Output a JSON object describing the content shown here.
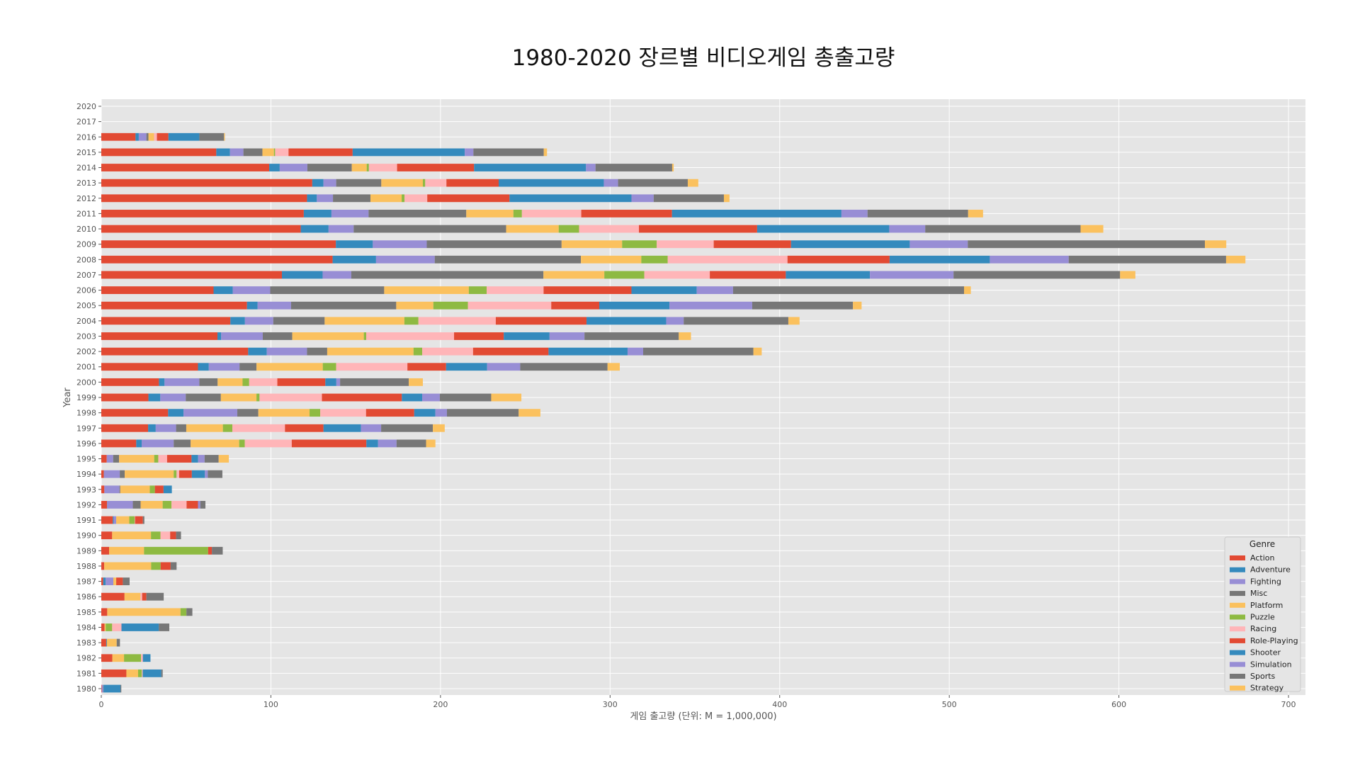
{
  "chart_data": {
    "type": "bar",
    "orientation": "horizontal",
    "stacked": true,
    "title": "1980-2020 장르별 비디오게임 총출고량",
    "xlabel": "게임 출고량 (단위: M = 1,000,000)",
    "ylabel": "Year",
    "xlim": [
      0,
      710
    ],
    "xticks": [
      0,
      100,
      200,
      300,
      400,
      500,
      600,
      700
    ],
    "grid": true,
    "legend": {
      "title": "Genre",
      "placement": "bottom-right"
    },
    "categories": [
      "1980",
      "1981",
      "1982",
      "1983",
      "1984",
      "1985",
      "1986",
      "1987",
      "1988",
      "1989",
      "1990",
      "1991",
      "1992",
      "1993",
      "1994",
      "1995",
      "1996",
      "1997",
      "1998",
      "1999",
      "2000",
      "2001",
      "2002",
      "2003",
      "2004",
      "2005",
      "2006",
      "2007",
      "2008",
      "2009",
      "2010",
      "2011",
      "2012",
      "2013",
      "2014",
      "2015",
      "2016",
      "2017",
      "2020"
    ],
    "colors": {
      "Action": "#E24A33",
      "Adventure": "#348ABD",
      "Fighting": "#988ED5",
      "Misc": "#777777",
      "Platform": "#FBC15E",
      "Puzzle": "#8EBA42",
      "Racing": "#FFB5B8",
      "Role-Playing": "#E24A33",
      "Shooter": "#348ABD",
      "Simulation": "#988ED5",
      "Sports": "#777777",
      "Strategy": "#FBC15E"
    },
    "series": [
      {
        "name": "Action",
        "values": [
          0.3,
          14.8,
          6.5,
          2.9,
          1.9,
          3.5,
          13.7,
          1.1,
          1.7,
          4.6,
          6.4,
          6.8,
          3.4,
          1.8,
          1.5,
          3.2,
          20.6,
          27.6,
          39.4,
          27.8,
          34.0,
          57.0,
          86.6,
          68.5,
          76.1,
          85.9,
          66.2,
          106.5,
          136.4,
          138.3,
          117.6,
          119.4,
          121.3,
          124.4,
          99.0,
          67.8,
          20.2,
          0,
          0
        ]
      },
      {
        "name": "Adventure",
        "values": [
          0,
          0,
          0,
          0.4,
          0,
          0,
          0,
          1.5,
          0,
          0,
          0,
          0.5,
          0.1,
          0,
          0.1,
          0,
          3.2,
          4.5,
          9.1,
          7.0,
          3.3,
          6.4,
          11.0,
          2.2,
          8.6,
          6.3,
          11.3,
          24.0,
          25.6,
          21.8,
          16.4,
          16.3,
          5.8,
          6.6,
          6.2,
          8.1,
          1.9,
          0,
          0
        ]
      },
      {
        "name": "Fighting",
        "values": [
          0.8,
          0,
          0,
          0,
          0,
          0,
          0,
          4.5,
          0,
          0,
          0,
          1.5,
          15.1,
          8.9,
          9.3,
          3.8,
          18.9,
          12.0,
          31.7,
          15.0,
          20.5,
          18.1,
          23.7,
          24.5,
          16.7,
          19.7,
          22.1,
          16.9,
          34.6,
          31.8,
          14.8,
          21.9,
          9.5,
          7.5,
          16.3,
          7.9,
          4.5,
          0,
          0
        ]
      },
      {
        "name": "Misc",
        "values": [
          0.2,
          0,
          0,
          0,
          0,
          0,
          0,
          0,
          0,
          0,
          0,
          0,
          4.6,
          0.5,
          2.9,
          3.5,
          10.0,
          6.0,
          12.4,
          20.7,
          10.8,
          10.0,
          11.9,
          17.4,
          30.3,
          62.0,
          67.2,
          113.3,
          86.2,
          79.5,
          89.9,
          57.6,
          22.1,
          26.6,
          26.2,
          11.2,
          1.2,
          0,
          0
        ]
      },
      {
        "name": "Platform",
        "values": [
          0,
          6.9,
          6.9,
          5.8,
          0.7,
          43.2,
          9.4,
          1.7,
          27.7,
          20.6,
          22.9,
          7.7,
          13.0,
          17.4,
          28.9,
          20.7,
          28.6,
          21.6,
          30.2,
          21.0,
          14.7,
          39.1,
          50.9,
          42.2,
          47.0,
          21.9,
          49.9,
          35.9,
          35.6,
          35.7,
          31.0,
          27.8,
          18.4,
          24.5,
          8.8,
          6.8,
          3.3,
          0,
          0
        ]
      },
      {
        "name": "Puzzle",
        "values": [
          0,
          2.2,
          10.0,
          0,
          3.8,
          3.5,
          0,
          0,
          5.6,
          37.8,
          5.6,
          3.2,
          5.2,
          3.0,
          1.7,
          2.4,
          3.3,
          5.6,
          6.3,
          1.8,
          3.9,
          7.9,
          5.1,
          1.4,
          8.3,
          20.4,
          10.5,
          23.6,
          15.6,
          20.4,
          12.0,
          5.0,
          1.7,
          1.4,
          1.3,
          0.7,
          0,
          0,
          0
        ]
      },
      {
        "name": "Racing",
        "values": [
          0,
          0.5,
          1.1,
          0,
          5.5,
          0,
          1.0,
          0,
          0,
          0,
          5.7,
          0.2,
          8.9,
          0,
          1.5,
          5.2,
          27.7,
          31.0,
          27.0,
          36.8,
          16.6,
          42.0,
          30.0,
          51.8,
          45.6,
          49.1,
          33.6,
          38.6,
          70.6,
          33.6,
          35.3,
          35.0,
          13.4,
          12.5,
          16.6,
          7.9,
          1.7,
          0,
          0
        ]
      },
      {
        "name": "Role-Playing",
        "values": [
          0,
          0,
          0,
          0,
          0,
          0,
          2.5,
          3.9,
          5.9,
          2.2,
          3.5,
          4.6,
          6.7,
          5.1,
          7.5,
          14.4,
          44.0,
          22.7,
          28.4,
          47.1,
          28.3,
          22.8,
          44.5,
          29.3,
          53.5,
          28.3,
          51.8,
          44.8,
          60.2,
          45.6,
          69.7,
          53.5,
          48.5,
          30.8,
          45.4,
          37.8,
          6.8,
          0,
          0
        ]
      },
      {
        "name": "Shooter",
        "values": [
          10.0,
          11.0,
          4.5,
          0,
          22.0,
          0,
          0,
          0,
          0,
          0,
          0,
          0,
          0,
          4.9,
          7.7,
          3.9,
          6.9,
          22.1,
          12.5,
          12.0,
          6.5,
          24.2,
          46.6,
          27.0,
          47.0,
          41.4,
          38.5,
          49.6,
          59.1,
          70.0,
          77.9,
          99.9,
          71.9,
          62.0,
          66.0,
          66.1,
          18.2,
          0,
          0
        ]
      },
      {
        "name": "Simulation",
        "values": [
          0,
          0,
          0,
          0,
          0,
          0,
          0,
          0,
          0,
          0,
          0,
          0,
          1.4,
          0,
          1.7,
          3.8,
          10.9,
          11.9,
          6.8,
          10.4,
          2.2,
          19.5,
          9.2,
          20.6,
          10.3,
          48.8,
          21.4,
          49.3,
          46.5,
          34.2,
          21.2,
          15.4,
          13.1,
          8.4,
          5.6,
          5.1,
          0,
          0,
          0
        ]
      },
      {
        "name": "Sports",
        "values": [
          0.5,
          0.8,
          0,
          1.9,
          6.2,
          3.5,
          10.2,
          4.0,
          3.5,
          6.4,
          2.9,
          0.9,
          3.0,
          0,
          8.6,
          8.3,
          17.4,
          30.5,
          42.3,
          30.3,
          40.5,
          51.5,
          65.0,
          55.6,
          61.7,
          59.4,
          136.2,
          98.2,
          92.8,
          139.8,
          91.6,
          59.3,
          41.4,
          41.1,
          45.2,
          41.5,
          14.6,
          0,
          0
        ]
      },
      {
        "name": "Strategy",
        "values": [
          0,
          0,
          0,
          0,
          0,
          0,
          0,
          0,
          0,
          0,
          0,
          0,
          0,
          0,
          0,
          6.0,
          5.5,
          7.0,
          12.8,
          17.8,
          8.3,
          7.2,
          4.9,
          7.2,
          6.6,
          5.1,
          4.0,
          9.0,
          11.4,
          12.6,
          13.4,
          8.8,
          3.3,
          6.2,
          0.9,
          1.9,
          0.5,
          0,
          0
        ]
      }
    ]
  }
}
